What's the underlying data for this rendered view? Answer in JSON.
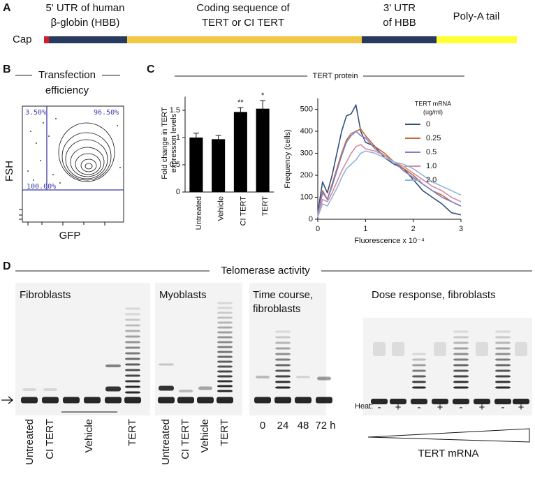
{
  "panel_a": {
    "label": "A",
    "cap": "Cap",
    "segments": [
      [
        "5' UTR of human",
        "β-globin (HBB)"
      ],
      [
        "Coding sequence of",
        "TERT or CI TERT"
      ],
      [
        "3' UTR",
        "of HBB"
      ],
      [
        "Poly-A tail"
      ]
    ]
  },
  "panel_b": {
    "label": "B",
    "title": [
      "Transfection",
      "efficiency"
    ],
    "y_label": "FSH",
    "x_label": "GFP",
    "gates": [
      "3.50%",
      "96.50%",
      "100.00%"
    ]
  },
  "panel_c": {
    "label": "C",
    "title": "TERT protein"
  },
  "chart_data": [
    {
      "type": "bar",
      "y_label": [
        "Fold change in TERT",
        "expression levels"
      ],
      "categories": [
        "Untreated",
        "Vehicle",
        "CI TERT",
        "TERT"
      ],
      "values": [
        1.0,
        0.97,
        1.47,
        1.53
      ],
      "errors": [
        0.08,
        0.07,
        0.08,
        0.15
      ],
      "annotations": [
        null,
        null,
        "**",
        "*"
      ],
      "color": "#000000",
      "ylim": [
        0,
        1.75
      ],
      "yticks": [
        0,
        0.5,
        1,
        1.5
      ]
    },
    {
      "type": "line",
      "x_label": "Fluorescence x 10⁻⁴",
      "y_label": "Frequency (cells)",
      "legend_title": [
        "TERT mRNA",
        "(ug/ml)"
      ],
      "x": [
        0,
        0.1,
        0.2,
        0.3,
        0.4,
        0.5,
        0.6,
        0.7,
        0.8,
        0.9,
        1.0,
        1.2,
        1.4,
        1.6,
        1.8,
        2.0,
        2.2,
        2.4,
        2.6,
        2.8,
        3.0
      ],
      "series": [
        {
          "name": "0",
          "color": "#35507e",
          "values": [
            30,
            170,
            120,
            200,
            300,
            400,
            470,
            480,
            520,
            400,
            350,
            330,
            280,
            250,
            230,
            180,
            130,
            100,
            70,
            30,
            20
          ]
        },
        {
          "name": "0.25",
          "color": "#c46a2c",
          "values": [
            20,
            130,
            90,
            160,
            230,
            300,
            360,
            390,
            400,
            410,
            380,
            330,
            300,
            260,
            230,
            200,
            160,
            130,
            110,
            80,
            60
          ]
        },
        {
          "name": "0.5",
          "color": "#7e7ed2",
          "values": [
            20,
            120,
            90,
            150,
            220,
            290,
            350,
            380,
            400,
            380,
            370,
            320,
            290,
            260,
            220,
            190,
            160,
            130,
            100,
            80,
            60
          ]
        },
        {
          "name": "1.0",
          "color": "#d48c9c",
          "values": [
            15,
            90,
            80,
            120,
            170,
            220,
            260,
            300,
            330,
            340,
            320,
            310,
            290,
            260,
            240,
            210,
            180,
            150,
            130,
            100,
            80
          ]
        },
        {
          "name": "2.0",
          "color": "#93b3da",
          "values": [
            10,
            70,
            60,
            100,
            140,
            190,
            230,
            250,
            270,
            300,
            310,
            300,
            280,
            260,
            250,
            230,
            200,
            170,
            150,
            130,
            110
          ]
        }
      ],
      "xlim": [
        0,
        3
      ],
      "xticks": [
        0,
        1,
        2,
        3
      ],
      "ylim": [
        0,
        550
      ],
      "yticks": [
        0,
        100,
        200,
        300,
        400,
        500
      ]
    }
  ],
  "panel_d": {
    "label": "D",
    "title": "Telomerase activity",
    "gels": [
      {
        "title": [
          "Fibroblasts"
        ],
        "lanes": [
          "Untreated",
          "CI TERT",
          "Vehicle",
          "TERT"
        ]
      },
      {
        "title": [
          "Myoblasts"
        ],
        "lanes": [
          "Untreated",
          "CI TERT",
          "Vehicle",
          "TERT"
        ]
      },
      {
        "title": [
          "Time course,",
          "fibroblasts"
        ],
        "lanes": [
          "0",
          "24",
          "48",
          "72 h"
        ]
      },
      {
        "title": [
          "Dose response, fibroblasts"
        ],
        "heat_label": "Heat:",
        "heat": [
          "-",
          "+",
          "-",
          "+",
          "-",
          "+",
          "-",
          "+"
        ],
        "x_label": "TERT mRNA"
      }
    ]
  }
}
